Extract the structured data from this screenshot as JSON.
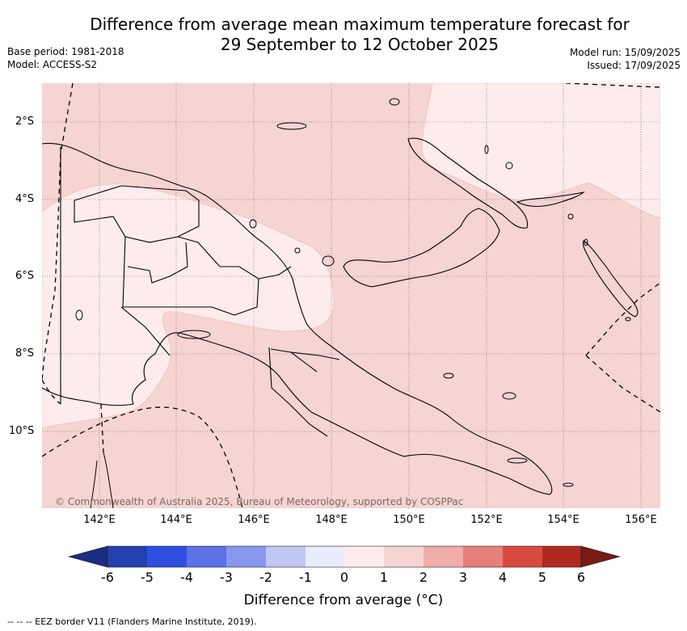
{
  "title_line1": "Difference from average mean maximum temperature forecast for",
  "title_line2": "29 September to 12 October 2025",
  "base_period": "Base period: 1981-2018",
  "model": "Model: ACCESS-S2",
  "model_run": "Model run: 15/09/2025",
  "issued": "Issued: 17/09/2025",
  "lat_labels": [
    "2°S",
    "4°S",
    "6°S",
    "8°S",
    "10°S"
  ],
  "lon_labels": [
    "142°E",
    "144°E",
    "146°E",
    "148°E",
    "150°E",
    "152°E",
    "154°E",
    "156°E"
  ],
  "copyright": "© Commonwealth of Australia 2025, Bureau of Meteorology, supported by COSPPac",
  "colorbar": {
    "labels": [
      "-6",
      "-5",
      "-4",
      "-3",
      "-2",
      "-1",
      "0",
      "1",
      "2",
      "3",
      "4",
      "5",
      "6"
    ],
    "colors": [
      "#1a2d80",
      "#2440b0",
      "#2f4fe0",
      "#5a72e6",
      "#8898ee",
      "#c2c8f5",
      "#e8ecfb",
      "#fdeceb",
      "#f5d4d2",
      "#efaca8",
      "#e57f78",
      "#d94a40",
      "#b02820",
      "#751c14"
    ],
    "title": "Difference from average (°C)"
  },
  "legend_footer": "--  --  -- EEZ border V11 (Flanders Marine Institute, 2019).",
  "palette": {
    "class_0_1": "#fdeceb",
    "class_1_2": "#f5d4d2",
    "coast": "#000000"
  }
}
